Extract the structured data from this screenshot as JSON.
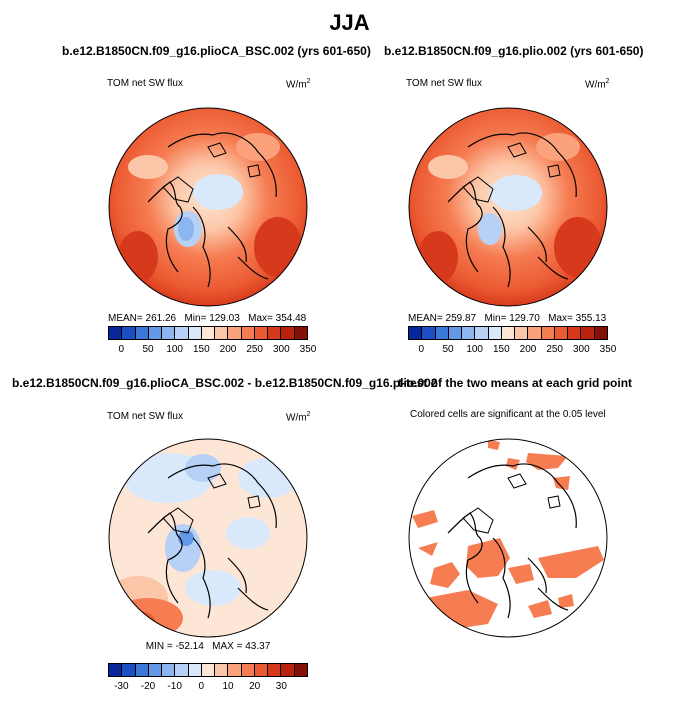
{
  "figure": {
    "title": "JJA"
  },
  "panels": [
    {
      "title": "b.e12.B1850CN.f09_g16.plioCA_BSC.002 (yrs 601-650)",
      "left_label": "TOM net SW flux",
      "unit_base": "W/m",
      "unit_exp": "2",
      "stats": {
        "mean_label": "MEAN=",
        "mean": "261.26",
        "min_label": "Min=",
        "min": "129.03",
        "max_label": "Max=",
        "max": "354.48"
      },
      "colorbar": {
        "colors": [
          "#08279e",
          "#1d4fc4",
          "#3a79da",
          "#6399e6",
          "#8db5ef",
          "#b6d0f6",
          "#d9e8fb",
          "#fde6d6",
          "#fcc7a8",
          "#fba27c",
          "#f67c52",
          "#eb5a32",
          "#d6391b",
          "#b8220f",
          "#861005"
        ],
        "labels": [
          "0",
          "50",
          "100",
          "150",
          "200",
          "250",
          "300",
          "350"
        ]
      }
    },
    {
      "title": "b.e12.B1850CN.f09_g16.plio.002 (yrs 601-650)",
      "left_label": "TOM net SW flux",
      "unit_base": "W/m",
      "unit_exp": "2",
      "stats": {
        "mean_label": "MEAN=",
        "mean": "259.87",
        "min_label": "Min=",
        "min": "129.70",
        "max_label": "Max=",
        "max": "355.13"
      },
      "colorbar": {
        "colors": [
          "#08279e",
          "#1d4fc4",
          "#3a79da",
          "#6399e6",
          "#8db5ef",
          "#b6d0f6",
          "#d9e8fb",
          "#fde6d6",
          "#fcc7a8",
          "#fba27c",
          "#f67c52",
          "#eb5a32",
          "#d6391b",
          "#b8220f",
          "#861005"
        ],
        "labels": [
          "0",
          "50",
          "100",
          "150",
          "200",
          "250",
          "300",
          "350"
        ]
      }
    },
    {
      "title": "b.e12.B1850CN.f09_g16.plioCA_BSC.002 - b.e12.B1850CN.f09_g16.plio.002",
      "left_label": "TOM net SW flux",
      "unit_base": "W/m",
      "unit_exp": "2",
      "stats": {
        "min_label": "MIN =",
        "min": "-52.14",
        "max_label": "MAX =",
        "max": "43.37"
      },
      "colorbar": {
        "colors": [
          "#08279e",
          "#1d4fc4",
          "#3a79da",
          "#6399e6",
          "#8db5ef",
          "#b6d0f6",
          "#d9e8fb",
          "#fde6d6",
          "#fcc7a8",
          "#fba27c",
          "#f67c52",
          "#eb5a32",
          "#d6391b",
          "#b8220f",
          "#861005"
        ],
        "labels": [
          "-30",
          "-20",
          "-10",
          "0",
          "10",
          "20",
          "30"
        ]
      }
    },
    {
      "title": "t-test of the two means at each grid point",
      "left_label": "Colored cells are significant at the 0.05 level"
    }
  ]
}
